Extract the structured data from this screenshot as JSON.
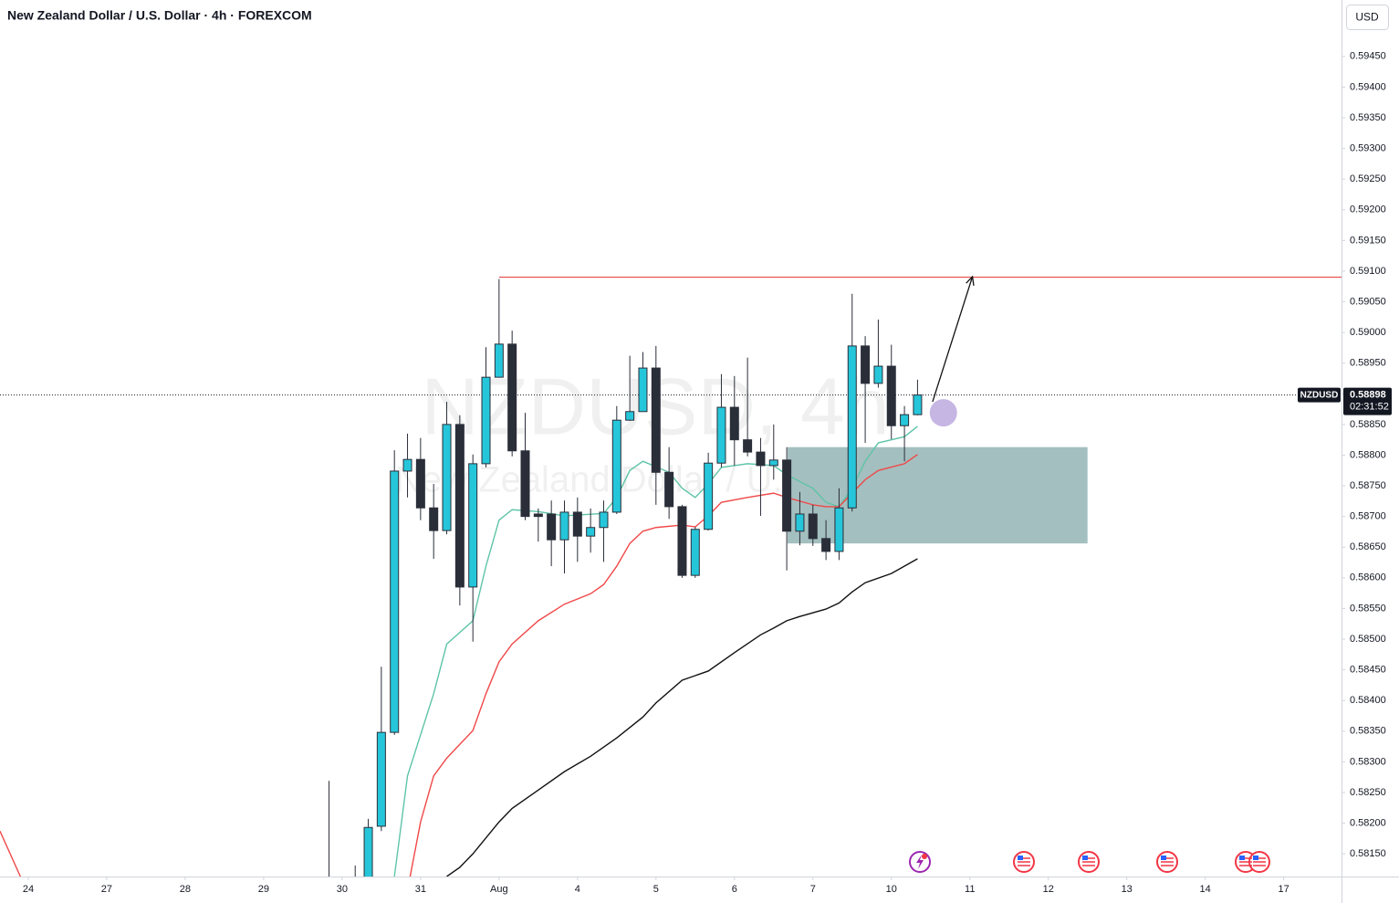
{
  "chart_data": {
    "type": "candlestick",
    "title": "New Zealand Dollar / U.S. Dollar · 4h · FOREXCOM",
    "watermark": "NZDUSD, 4h",
    "watermark_subtitle": "New Zealand Dollar / U.S. Dollar",
    "currency": "USD",
    "symbol": "NZDUSD",
    "last_price": 0.58898,
    "last_price_label": "0.58898",
    "countdown": "02:31:52",
    "up_color": "#26c6da",
    "down_color": "#2a2e39",
    "wick_color": "#2a2e39",
    "candles": {
      "x": [
        23,
        25,
        26,
        27,
        28,
        29,
        30,
        31,
        32,
        33,
        34,
        35,
        36,
        37,
        38,
        39,
        40,
        41,
        42,
        43,
        44,
        45,
        46,
        47,
        48,
        49,
        50,
        51,
        52,
        53,
        54,
        55,
        56,
        57,
        58,
        59,
        60,
        61,
        62,
        63,
        64,
        65,
        66,
        67,
        68
      ],
      "open": [
        0.5808,
        0.5809,
        0.581,
        0.58195,
        0.58348,
        0.58774,
        0.58793,
        0.58714,
        0.58677,
        0.5885,
        0.58585,
        0.58786,
        0.58927,
        0.58981,
        0.58807,
        0.58704,
        0.58704,
        0.58662,
        0.58707,
        0.58668,
        0.58682,
        0.58707,
        0.58857,
        0.58871,
        0.58942,
        0.58772,
        0.58716,
        0.58604,
        0.58679,
        0.58787,
        0.58878,
        0.58825,
        0.58805,
        0.58783,
        0.58792,
        0.58676,
        0.58704,
        0.58664,
        0.58643,
        0.58714,
        0.58978,
        0.58917,
        0.58945,
        0.58848,
        0.58866
      ],
      "high": [
        0.58269,
        0.58131,
        0.58207,
        0.58455,
        0.58808,
        0.58835,
        0.58828,
        0.58753,
        0.58887,
        0.58865,
        0.58801,
        0.58976,
        0.59087,
        0.59003,
        0.58869,
        0.58713,
        0.58726,
        0.58726,
        0.58731,
        0.58713,
        0.58726,
        0.5888,
        0.58962,
        0.58968,
        0.58978,
        0.58813,
        0.58719,
        0.58683,
        0.58804,
        0.58932,
        0.58929,
        0.58959,
        0.58828,
        0.5885,
        0.58813,
        0.5874,
        0.58719,
        0.58694,
        0.58746,
        0.59063,
        0.58994,
        0.59021,
        0.5898,
        0.5888,
        0.58923
      ],
      "low": [
        0.5804,
        0.5806,
        0.5808,
        0.58187,
        0.58344,
        0.58731,
        0.58694,
        0.58631,
        0.58671,
        0.58555,
        0.58496,
        0.5878,
        0.58927,
        0.58798,
        0.58694,
        0.58659,
        0.58619,
        0.58607,
        0.58626,
        0.58641,
        0.58626,
        0.58704,
        0.58856,
        0.58871,
        0.58719,
        0.58696,
        0.586,
        0.586,
        0.58677,
        0.5878,
        0.58783,
        0.58798,
        0.58701,
        0.5876,
        0.58612,
        0.58653,
        0.58652,
        0.58629,
        0.58629,
        0.58708,
        0.5882,
        0.5891,
        0.58826,
        0.5879,
        0.58865
      ],
      "close": [
        0.5806,
        0.581,
        0.58193,
        0.58348,
        0.58774,
        0.58793,
        0.58714,
        0.58677,
        0.5885,
        0.58585,
        0.58786,
        0.58927,
        0.58981,
        0.58807,
        0.587,
        0.587,
        0.58662,
        0.58707,
        0.58668,
        0.58682,
        0.58707,
        0.58857,
        0.58871,
        0.58942,
        0.58772,
        0.58716,
        0.58604,
        0.58679,
        0.58787,
        0.58878,
        0.58825,
        0.58805,
        0.58783,
        0.58792,
        0.58676,
        0.58704,
        0.58664,
        0.58643,
        0.58714,
        0.58978,
        0.58917,
        0.58945,
        0.58848,
        0.58866,
        0.58898
      ]
    },
    "lines": [
      {
        "color": "#5fc4a8",
        "x": [
          28,
          29,
          31,
          32,
          34,
          35,
          36,
          37,
          39,
          41,
          44,
          45,
          46,
          47,
          49,
          50,
          51,
          52,
          53,
          55,
          57,
          58,
          60,
          61,
          62,
          63,
          64,
          65,
          67,
          68
        ],
        "values": [
          0.58113,
          0.58277,
          0.58411,
          0.58492,
          0.5853,
          0.58619,
          0.58694,
          0.58711,
          0.58708,
          0.58701,
          0.58705,
          0.58731,
          0.58775,
          0.5879,
          0.58772,
          0.58746,
          0.58731,
          0.58753,
          0.5878,
          0.58786,
          0.58783,
          0.58768,
          0.58746,
          0.58723,
          0.58716,
          0.58746,
          0.5879,
          0.5882,
          0.5883,
          0.58847
        ]
      },
      {
        "color": "#f04848",
        "x": [
          -2.16,
          -0.6,
          null,
          29.2,
          30,
          31,
          32,
          34,
          35,
          36,
          37,
          39,
          41,
          43,
          44,
          45,
          46,
          47,
          48,
          50,
          51,
          52,
          53,
          55,
          57,
          58,
          60,
          61,
          62,
          63,
          64,
          65,
          67,
          68
        ],
        "values": [
          0.58187,
          0.58113,
          null,
          0.58113,
          0.58202,
          0.58277,
          0.58306,
          0.58351,
          0.58411,
          0.58463,
          0.58492,
          0.5853,
          0.58557,
          0.58574,
          0.58589,
          0.58619,
          0.58656,
          0.58676,
          0.58682,
          0.58686,
          0.58683,
          0.58701,
          0.58723,
          0.58731,
          0.58738,
          0.58731,
          0.58719,
          0.58716,
          0.58716,
          0.58738,
          0.5876,
          0.58775,
          0.58786,
          0.58801
        ]
      },
      {
        "color": "#111111",
        "x": [
          32,
          33,
          34,
          36,
          37,
          39,
          41,
          43,
          45,
          47,
          48,
          50,
          52,
          54,
          56,
          57,
          58,
          59,
          61,
          62,
          63,
          64,
          66,
          68
        ],
        "values": [
          0.58113,
          0.58128,
          0.5815,
          0.58202,
          0.58224,
          0.58254,
          0.58284,
          0.58309,
          0.58339,
          0.58373,
          0.58396,
          0.58433,
          0.58448,
          0.58478,
          0.58507,
          0.58518,
          0.5853,
          0.58537,
          0.58549,
          0.58559,
          0.58577,
          0.58592,
          0.58607,
          0.58631
        ]
      }
    ],
    "resistance": {
      "x": 36,
      "price": 0.5909,
      "color": "#e03030"
    },
    "zone": {
      "x": [
        58.06,
        81.0
      ],
      "price": [
        0.58656,
        0.58813
      ],
      "color": "#9fbcbc"
    },
    "arrow": {
      "x": [
        69.15,
        72.2
      ],
      "price": [
        0.58887,
        0.59091
      ],
      "color": "#111111"
    },
    "marker": {
      "x": 69,
      "price": 0.58869,
      "color": "#b39ddb"
    },
    "xlim": [
      -2.16,
      100.42
    ],
    "ylim": [
      0.58113,
      0.59542
    ],
    "xticks": [
      {
        "value": 0,
        "label": "24"
      },
      {
        "value": 6,
        "label": "27"
      },
      {
        "value": 12,
        "label": "28"
      },
      {
        "value": 18,
        "label": "29"
      },
      {
        "value": 24,
        "label": "30"
      },
      {
        "value": 30,
        "label": "31"
      },
      {
        "value": 36,
        "label": "Aug"
      },
      {
        "value": 42,
        "label": "4"
      },
      {
        "value": 48,
        "label": "5"
      },
      {
        "value": 54,
        "label": "6"
      },
      {
        "value": 60,
        "label": "7"
      },
      {
        "value": 66,
        "label": "10"
      },
      {
        "value": 72,
        "label": "11"
      },
      {
        "value": 78,
        "label": "12"
      },
      {
        "value": 84,
        "label": "13"
      },
      {
        "value": 90,
        "label": "14"
      },
      {
        "value": 96,
        "label": "17"
      }
    ],
    "yticks": [
      {
        "value": 0.5815,
        "label": "0.58150"
      },
      {
        "value": 0.582,
        "label": "0.58200"
      },
      {
        "value": 0.5825,
        "label": "0.58250"
      },
      {
        "value": 0.583,
        "label": "0.58300"
      },
      {
        "value": 0.5835,
        "label": "0.58350"
      },
      {
        "value": 0.584,
        "label": "0.58400"
      },
      {
        "value": 0.5845,
        "label": "0.58450"
      },
      {
        "value": 0.585,
        "label": "0.58500"
      },
      {
        "value": 0.5855,
        "label": "0.58550"
      },
      {
        "value": 0.586,
        "label": "0.58600"
      },
      {
        "value": 0.5865,
        "label": "0.58650"
      },
      {
        "value": 0.587,
        "label": "0.58700"
      },
      {
        "value": 0.5875,
        "label": "0.58750"
      },
      {
        "value": 0.588,
        "label": "0.58800"
      },
      {
        "value": 0.5885,
        "label": "0.58850"
      },
      {
        "value": 0.589,
        "label": "0.58900"
      },
      {
        "value": 0.5895,
        "label": "0.58950"
      },
      {
        "value": 0.59,
        "label": "0.59000"
      },
      {
        "value": 0.5905,
        "label": "0.59050"
      },
      {
        "value": 0.591,
        "label": "0.59100"
      },
      {
        "value": 0.5915,
        "label": "0.59150"
      },
      {
        "value": 0.592,
        "label": "0.59200"
      },
      {
        "value": 0.5925,
        "label": "0.59250"
      },
      {
        "value": 0.593,
        "label": "0.59300"
      },
      {
        "value": 0.5935,
        "label": "0.59350"
      },
      {
        "value": 0.594,
        "label": "0.59400"
      },
      {
        "value": 0.5945,
        "label": "0.59450"
      }
    ]
  }
}
